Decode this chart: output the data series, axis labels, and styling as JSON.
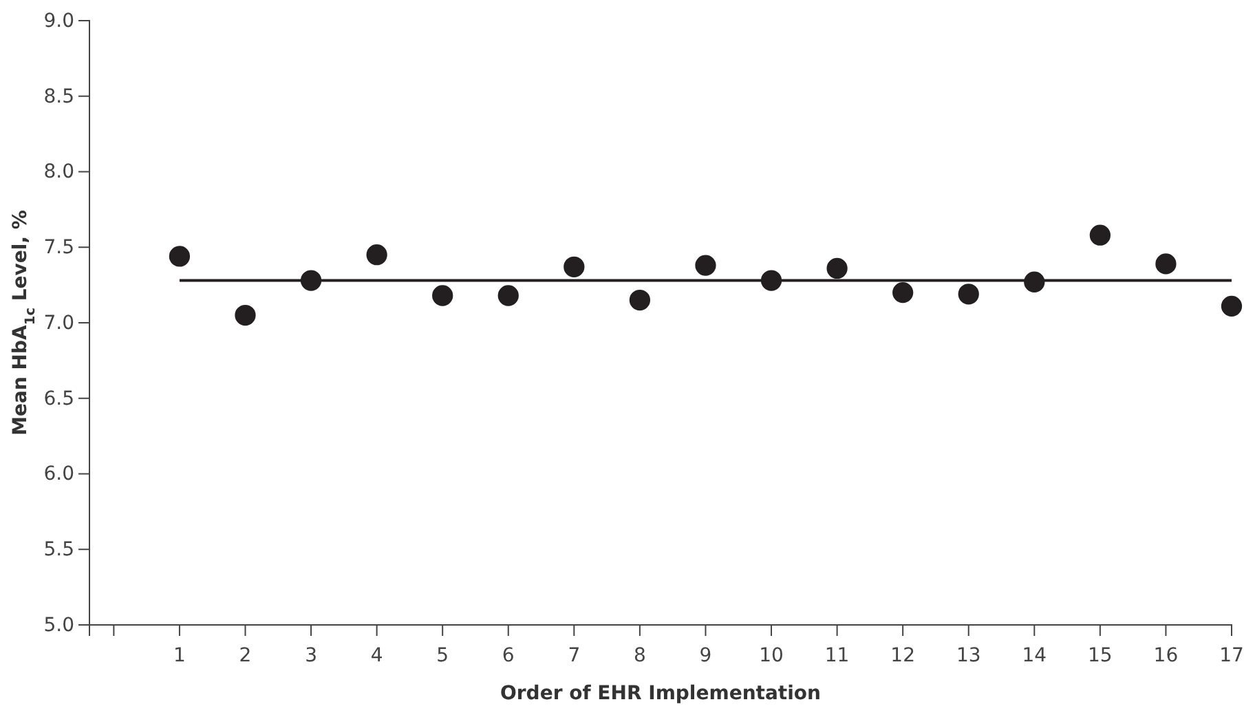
{
  "chart_data": {
    "type": "scatter",
    "xlabel": "Order of EHR Implementation",
    "ylabel": "Mean HbA$_{1c}$ Level, %",
    "xlim": [
      -0.37,
      17
    ],
    "xticks": [
      {
        "value": 0,
        "label": null
      },
      1,
      2,
      3,
      4,
      5,
      6,
      7,
      8,
      9,
      10,
      11,
      12,
      13,
      14,
      15,
      16,
      17
    ],
    "ylim": [
      5,
      9
    ],
    "yticks": [
      {
        "value": 5,
        "label": "5.0"
      },
      {
        "value": 5.5,
        "label": "5.5"
      },
      {
        "value": 6,
        "label": "6.0"
      },
      {
        "value": 6.5,
        "label": "6.5"
      },
      {
        "value": 7,
        "label": "7.0"
      },
      {
        "value": 7.5,
        "label": "7.5"
      },
      {
        "value": 8,
        "label": "8.0"
      },
      {
        "value": 8.5,
        "label": "8.5"
      },
      {
        "value": 9,
        "label": "9.0"
      }
    ],
    "grid": false,
    "marker": "circle",
    "series": [
      {
        "color": "#231f20",
        "x": [
          1,
          2,
          3,
          4,
          5,
          6,
          7,
          8,
          9,
          10,
          11,
          12,
          13,
          14,
          15,
          16,
          17
        ],
        "values": [
          7.44,
          7.05,
          7.28,
          7.45,
          7.18,
          7.18,
          7.37,
          7.15,
          7.38,
          7.28,
          7.36,
          7.2,
          7.19,
          7.27,
          7.58,
          7.39,
          7.11
        ]
      },
      {
        "type": "line",
        "color": "#231f20",
        "line_style": "solid",
        "marker": "none",
        "x": [
          1,
          17
        ],
        "values": [
          7.28,
          7.28
        ]
      }
    ]
  }
}
